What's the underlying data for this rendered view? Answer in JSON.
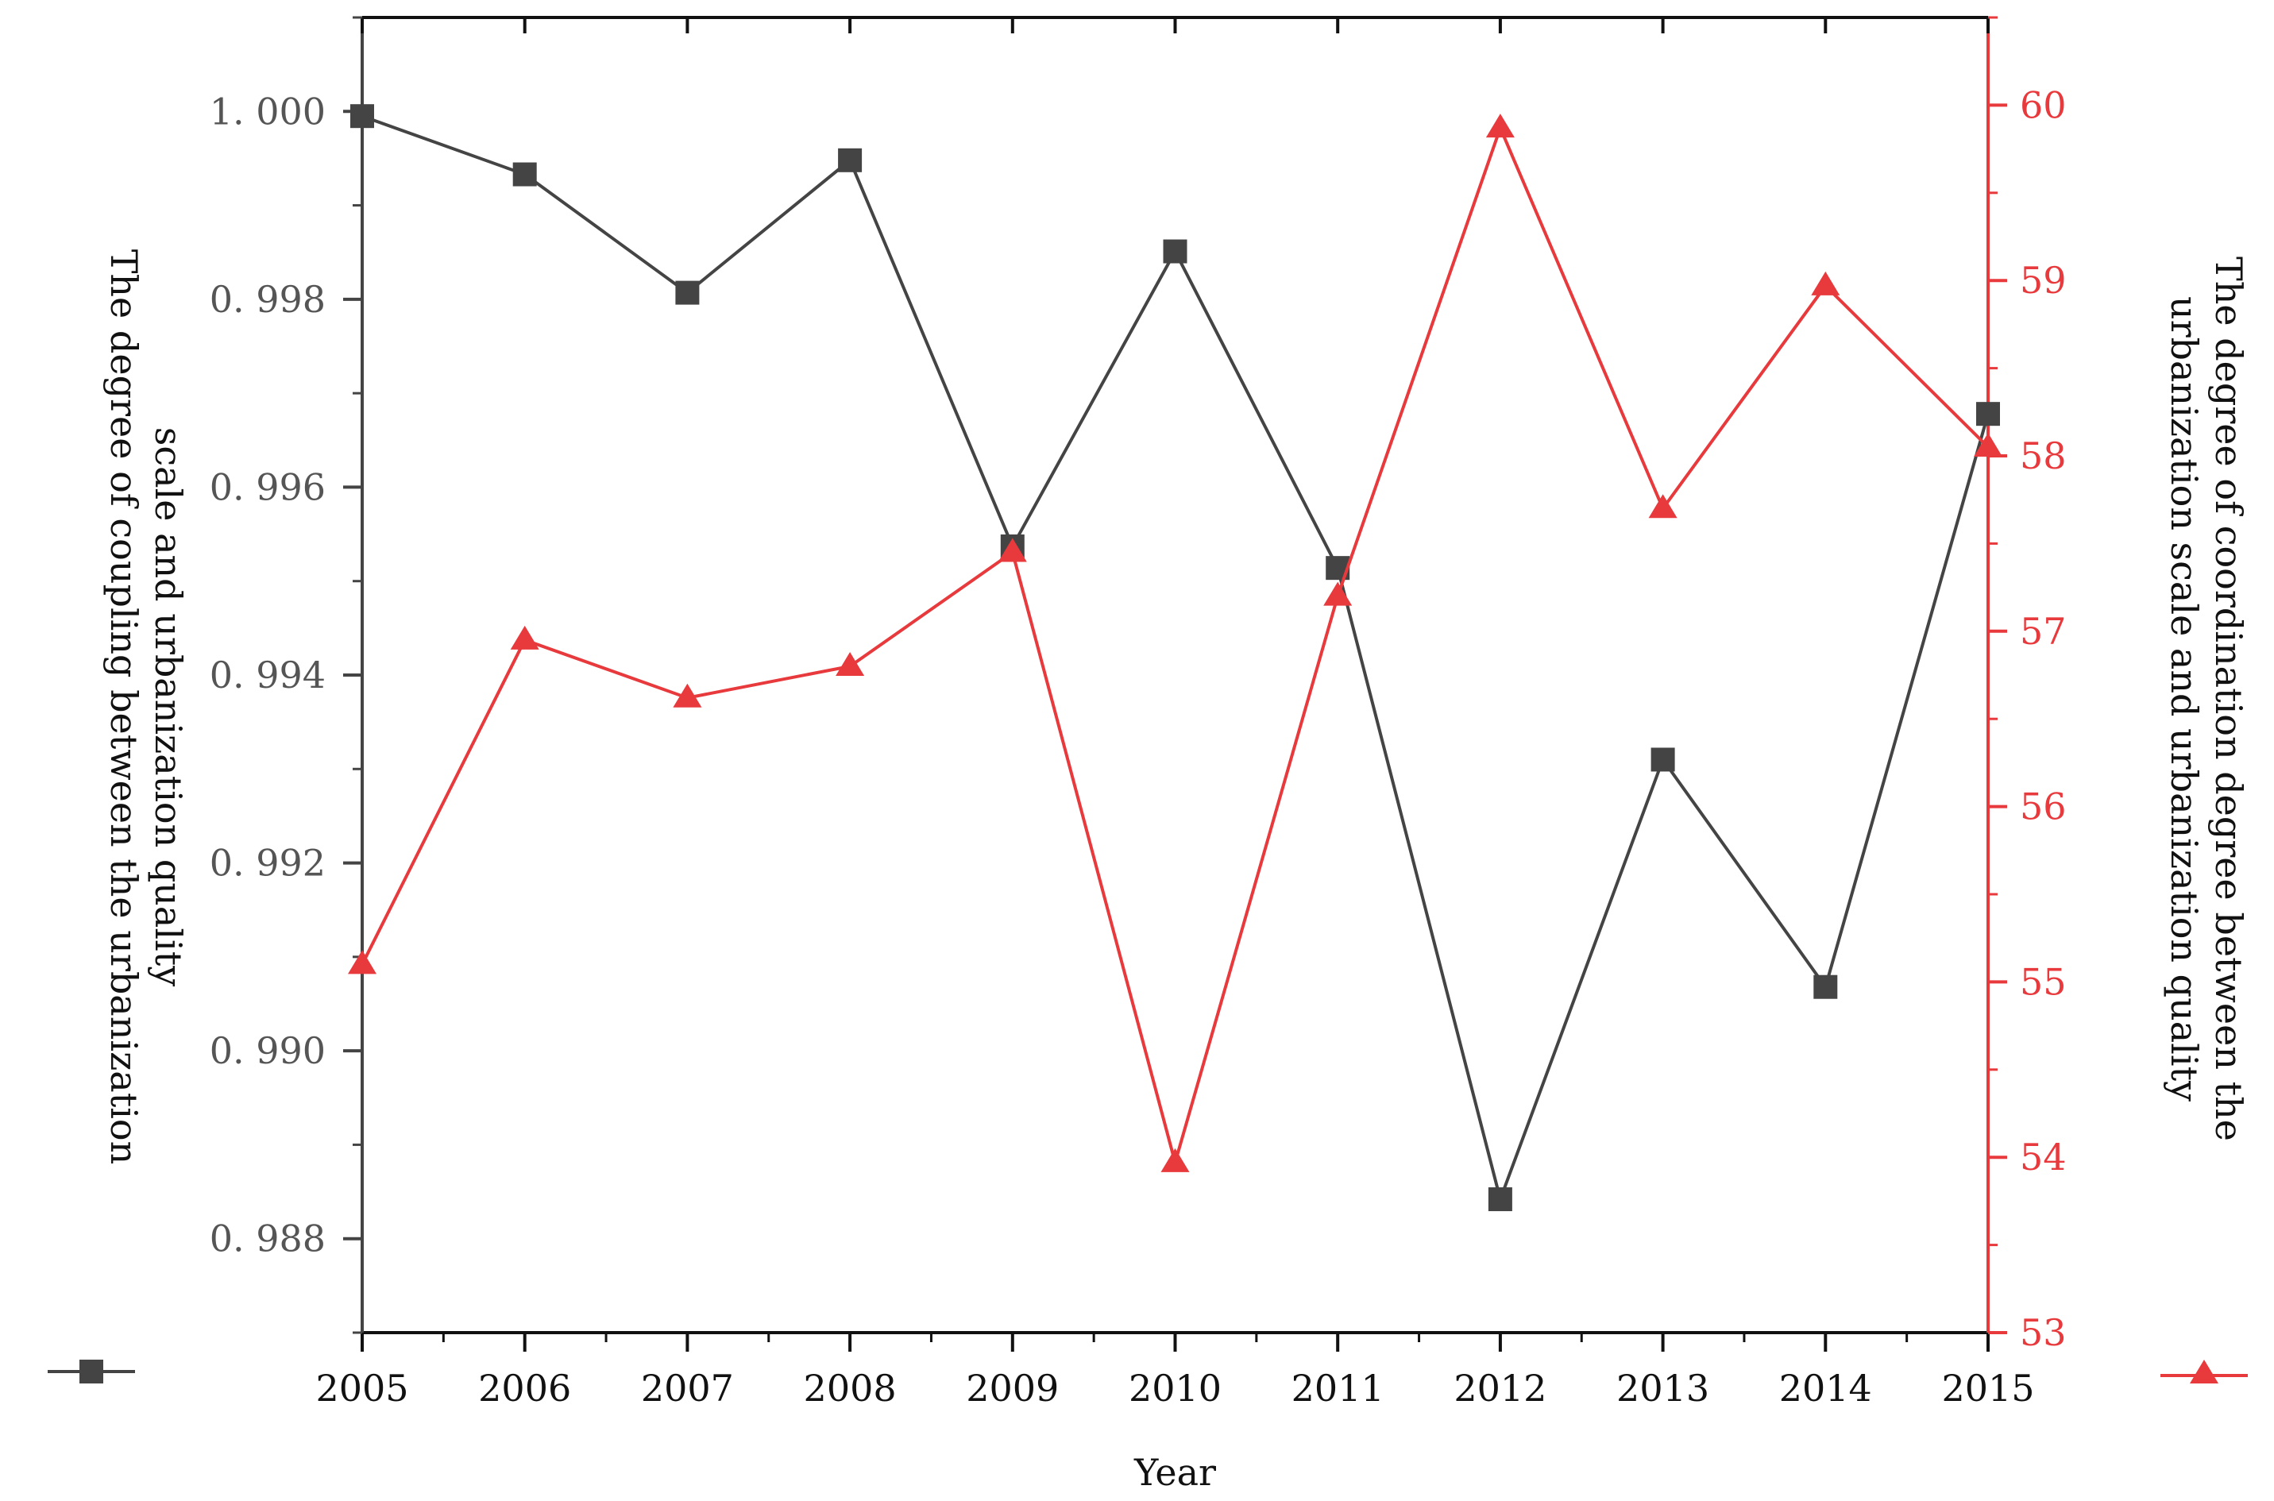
{
  "chart_data": {
    "type": "line",
    "xlabel": "Year",
    "x": [
      2005,
      2006,
      2007,
      2008,
      2009,
      2010,
      2011,
      2012,
      2013,
      2014,
      2015
    ],
    "x_tick_labels": [
      "2005",
      "2006",
      "2007",
      "2008",
      "2009",
      "2010",
      "2011",
      "2012",
      "2013",
      "2014",
      "2015"
    ],
    "y_left": {
      "label_lines": [
        "The degree of coupling between the urbanization",
        "scale and urbanization quality"
      ],
      "ylim": [
        0.987,
        1.001
      ],
      "ticks": [
        0.988,
        0.99,
        0.992,
        0.994,
        0.996,
        0.998,
        1.0
      ],
      "tick_labels": [
        "0. 988",
        "0. 990",
        "0. 992",
        "0. 994",
        "0. 996",
        "0. 998",
        "1. 000"
      ],
      "color": "#444444"
    },
    "y_right": {
      "label_lines": [
        "The degree of coordination degree between the",
        "urbanization scale and urbanization quality"
      ],
      "ylim": [
        53,
        60.5
      ],
      "ticks": [
        53,
        54,
        55,
        56,
        57,
        58,
        59,
        60
      ],
      "tick_labels": [
        "53",
        "54",
        "55",
        "56",
        "57",
        "58",
        "59",
        "60"
      ],
      "color": "#e8393c"
    },
    "series": [
      {
        "axis": "left",
        "marker": "square",
        "color": "#444444",
        "values": [
          0.99995,
          0.99933,
          0.99807,
          0.99948,
          0.99537,
          0.99851,
          0.99514,
          0.98842,
          0.9931,
          0.99068,
          0.99678
        ]
      },
      {
        "axis": "right",
        "marker": "triangle",
        "color": "#e8393c",
        "values": [
          55.1,
          56.95,
          56.62,
          56.8,
          57.45,
          53.97,
          57.2,
          59.87,
          57.7,
          58.97,
          58.05
        ]
      }
    ],
    "grid": false,
    "legend": "beside-axes"
  }
}
